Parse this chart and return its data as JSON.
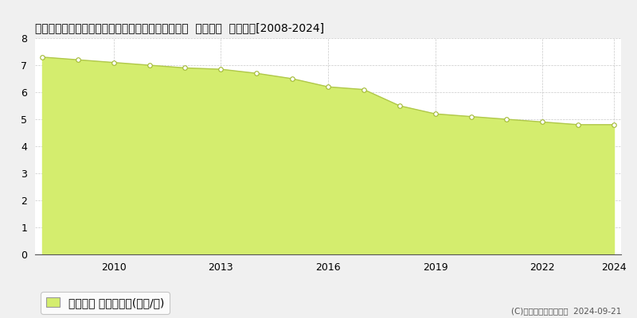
{
  "title": "愛知県北設楽郡東栄町大字本郷字西万場４２番４外  基準地価  地価推移[2008-2024]",
  "years": [
    2008,
    2009,
    2010,
    2011,
    2012,
    2013,
    2014,
    2015,
    2016,
    2017,
    2018,
    2019,
    2020,
    2021,
    2022,
    2023,
    2024
  ],
  "values": [
    7.3,
    7.2,
    7.1,
    7.0,
    6.9,
    6.85,
    6.7,
    6.5,
    6.2,
    6.1,
    5.5,
    5.2,
    5.1,
    5.0,
    4.9,
    4.8,
    4.8
  ],
  "fill_color": "#d4ed6e",
  "line_color": "#b0c84a",
  "marker_color": "#ffffff",
  "marker_edge_color": "#a0b830",
  "background_color": "#f0f0f0",
  "plot_bg_color": "#ffffff",
  "grid_color": "#bbbbbb",
  "ylim": [
    0,
    8
  ],
  "yticks": [
    0,
    1,
    2,
    3,
    4,
    5,
    6,
    7,
    8
  ],
  "xtick_years": [
    2010,
    2013,
    2016,
    2019,
    2022,
    2024
  ],
  "legend_label": "基準地価 平均坪単価(万円/坪)",
  "copyright_text": "(C)土地価格ドットコム  2024-09-21",
  "title_fontsize": 11,
  "legend_fontsize": 9,
  "axis_fontsize": 9
}
